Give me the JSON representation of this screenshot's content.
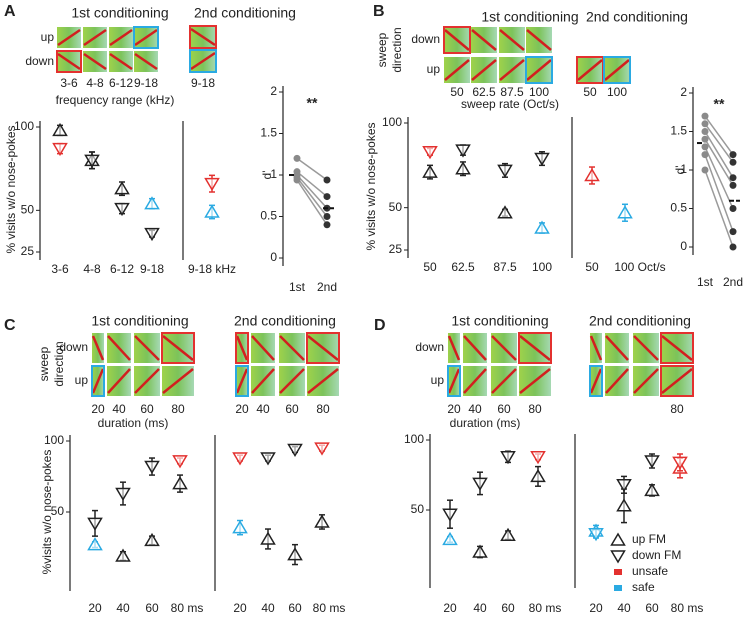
{
  "figure": {
    "panels": [
      {
        "letter": "A",
        "headings": [
          "1st conditioning",
          "2nd conditioning"
        ],
        "row_labels": [
          "up",
          "down"
        ],
        "thumb_labels": [
          [
            "3-6",
            "4-8",
            "6-12",
            "9-18"
          ],
          [
            "9-18"
          ]
        ],
        "axis_label": "frequency range (kHz)"
      },
      {
        "letter": "B",
        "headings": [
          "1st conditioning",
          "2nd conditioning"
        ],
        "side_label": [
          "sweep",
          "direction"
        ],
        "row_labels": [
          "down",
          "up"
        ],
        "thumb_labels": [
          [
            "50",
            "62.5",
            "87.5",
            "100"
          ],
          [
            "50",
            "100"
          ]
        ],
        "axis_label": "sweep rate (Oct/s)"
      },
      {
        "letter": "C",
        "headings": [
          "1st conditioning",
          "2nd conditioning"
        ],
        "side_label": [
          "sweep",
          "direction"
        ],
        "row_labels": [
          "down",
          "up"
        ],
        "thumb_labels": [
          [
            "20",
            "40",
            "60",
            "80"
          ],
          [
            "20",
            "40",
            "60",
            "80"
          ]
        ],
        "axis_label": "duration (ms)"
      },
      {
        "letter": "D",
        "headings": [
          "1st conditioning",
          "2nd conditioning"
        ],
        "row_labels": [
          "down",
          "up"
        ],
        "thumb_labels": [
          [
            "20",
            "40",
            "60",
            "80"
          ],
          [
            "80"
          ]
        ],
        "axis_label": "duration (ms)"
      }
    ]
  },
  "legend": {
    "items": [
      {
        "label": "up FM",
        "marker": "up",
        "color": "#222222"
      },
      {
        "label": "down FM",
        "marker": "down",
        "color": "#222222"
      },
      {
        "label": "unsafe",
        "marker": "square",
        "color": "#e3312f"
      },
      {
        "label": "safe",
        "marker": "square",
        "color": "#2aaae2"
      }
    ]
  },
  "chart_data": [
    {
      "type": "scatter",
      "ylabel": "% visits w/o nose-pokes",
      "ylim": [
        25,
        100
      ],
      "yticks": [
        25,
        50,
        100
      ],
      "categories": [
        "3-6",
        "4-8",
        "6-12",
        "9-18"
      ],
      "series": [
        {
          "marker": "up",
          "values": [
            98,
            80,
            63,
            54
          ],
          "errors": [
            3,
            5,
            4,
            3
          ],
          "colors": [
            "#222222",
            "#222222",
            "#222222",
            "#2aaae2"
          ]
        },
        {
          "marker": "down",
          "values": [
            87,
            80,
            51,
            36
          ],
          "errors": [
            3,
            5,
            3,
            2
          ],
          "colors": [
            "#e3312f",
            "#222222",
            "#222222",
            "#222222"
          ]
        }
      ]
    },
    {
      "type": "scatter",
      "ylim": [
        25,
        100
      ],
      "categories": [
        "9-18 kHz"
      ],
      "series": [
        {
          "marker": "up",
          "values": [
            49
          ],
          "errors": [
            4
          ],
          "colors": [
            "#2aaae2"
          ]
        },
        {
          "marker": "down",
          "values": [
            66
          ],
          "errors": [
            5
          ],
          "colors": [
            "#e3312f"
          ]
        }
      ]
    },
    {
      "type": "paired",
      "ylabel": "d'",
      "ylim": [
        0,
        2
      ],
      "yticks": [
        0,
        0.5,
        1,
        1.5,
        2
      ],
      "categories": [
        "1st",
        "2nd"
      ],
      "annotation": "**",
      "series": [
        {
          "values": [
            1.2,
            0.94
          ]
        },
        {
          "values": [
            1.04,
            0.74
          ]
        },
        {
          "values": [
            1.0,
            0.6
          ]
        },
        {
          "values": [
            0.97,
            0.5
          ]
        },
        {
          "values": [
            0.94,
            0.4
          ]
        }
      ],
      "means": [
        1.0,
        0.6
      ]
    },
    {
      "type": "scatter",
      "ylabel": "% visits w/o nose-pokes",
      "ylim": [
        25,
        100
      ],
      "yticks": [
        25,
        50,
        100
      ],
      "categories": [
        "50",
        "62.5",
        "87.5",
        "100"
      ],
      "series": [
        {
          "marker": "up",
          "values": [
            71,
            73,
            47,
            38
          ],
          "errors": [
            4,
            4,
            2,
            3
          ],
          "colors": [
            "#222222",
            "#222222",
            "#222222",
            "#2aaae2"
          ]
        },
        {
          "marker": "down",
          "values": [
            83,
            84,
            72,
            79
          ],
          "errors": [
            2,
            3,
            4,
            4
          ],
          "colors": [
            "#e3312f",
            "#222222",
            "#222222",
            "#222222"
          ]
        }
      ]
    },
    {
      "type": "scatter",
      "ylim": [
        25,
        100
      ],
      "categories": [
        "50",
        "100 Oct/s"
      ],
      "series": [
        {
          "marker": "up",
          "values": [
            69,
            47
          ],
          "errors": [
            5,
            5
          ],
          "colors": [
            "#e3312f",
            "#2aaae2"
          ]
        }
      ]
    },
    {
      "type": "paired",
      "ylabel": "d'",
      "ylim": [
        0,
        2
      ],
      "yticks": [
        0,
        0.5,
        1,
        1.5,
        2
      ],
      "categories": [
        "1st",
        "2nd"
      ],
      "annotation": "**",
      "series": [
        {
          "values": [
            1.7,
            1.2
          ]
        },
        {
          "values": [
            1.6,
            1.1
          ]
        },
        {
          "values": [
            1.5,
            0.9
          ]
        },
        {
          "values": [
            1.4,
            0.8
          ]
        },
        {
          "values": [
            1.3,
            0.5
          ]
        },
        {
          "values": [
            1.2,
            0.2
          ]
        },
        {
          "values": [
            1.0,
            0.0
          ]
        }
      ],
      "means": [
        1.35,
        0.6
      ]
    },
    {
      "type": "scatter",
      "ylabel": "%visits w/o nose-pokes",
      "ylim": [
        0,
        100
      ],
      "yticks": [
        50,
        100
      ],
      "categories": [
        "20",
        "40",
        "60",
        "80 ms"
      ],
      "series": [
        {
          "marker": "up",
          "values": [
            27,
            19,
            30,
            70
          ],
          "errors": [
            2,
            3,
            3,
            6
          ],
          "colors": [
            "#2aaae2",
            "#222222",
            "#222222",
            "#222222"
          ]
        },
        {
          "marker": "down",
          "values": [
            42,
            63,
            82,
            86
          ],
          "errors": [
            9,
            8,
            6,
            2
          ],
          "colors": [
            "#222222",
            "#222222",
            "#222222",
            "#e3312f"
          ]
        }
      ]
    },
    {
      "type": "scatter",
      "ylim": [
        0,
        100
      ],
      "categories": [
        "20",
        "40",
        "60",
        "80 ms"
      ],
      "series": [
        {
          "marker": "up",
          "values": [
            39,
            31,
            20,
            43
          ],
          "errors": [
            5,
            7,
            7,
            5
          ],
          "colors": [
            "#2aaae2",
            "#222222",
            "#222222",
            "#222222"
          ]
        },
        {
          "marker": "down",
          "values": [
            88,
            88,
            94,
            95
          ],
          "errors": [
            2,
            2,
            2,
            2
          ],
          "colors": [
            "#e3312f",
            "#222222",
            "#222222",
            "#e3312f"
          ]
        }
      ]
    },
    {
      "type": "scatter",
      "ylim": [
        0,
        100
      ],
      "yticks": [
        50,
        100
      ],
      "categories": [
        "20",
        "40",
        "60",
        "80 ms"
      ],
      "series": [
        {
          "marker": "up",
          "values": [
            29,
            20,
            32,
            74
          ],
          "errors": [
            2,
            4,
            3,
            7
          ],
          "colors": [
            "#2aaae2",
            "#222222",
            "#222222",
            "#222222"
          ]
        },
        {
          "marker": "down",
          "values": [
            47,
            69,
            88,
            88
          ],
          "errors": [
            10,
            8,
            4,
            2
          ],
          "colors": [
            "#222222",
            "#222222",
            "#222222",
            "#e3312f"
          ]
        }
      ]
    },
    {
      "type": "scatter",
      "ylim": [
        0,
        100
      ],
      "categories": [
        "20",
        "40",
        "60",
        "80 ms"
      ],
      "series": [
        {
          "marker": "up",
          "values": [
            35,
            53,
            64,
            80
          ],
          "errors": [
            4,
            12,
            4,
            7
          ],
          "colors": [
            "#2aaae2",
            "#222222",
            "#222222",
            "#e3312f"
          ]
        },
        {
          "marker": "down",
          "values": [
            33,
            68,
            85,
            84
          ],
          "errors": [
            3,
            6,
            5,
            6
          ],
          "colors": [
            "#2aaae2",
            "#222222",
            "#222222",
            "#e3312f"
          ]
        }
      ]
    }
  ]
}
